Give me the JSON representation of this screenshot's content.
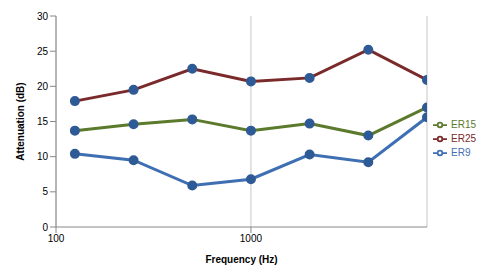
{
  "chart_data": {
    "type": "line",
    "x_label": "Frequency (Hz)",
    "y_label": "Attenuation (dB)",
    "x": [
      125,
      250,
      500,
      1000,
      2000,
      4000,
      8000
    ],
    "series": [
      {
        "name": "ER9",
        "color": "#3f6fb3",
        "values": [
          10.4,
          9.5,
          5.9,
          6.8,
          10.3,
          9.2,
          15.6
        ]
      },
      {
        "name": "ER15",
        "color": "#5c7a2c",
        "values": [
          13.7,
          14.6,
          15.3,
          13.7,
          14.7,
          13.0,
          17.0
        ]
      },
      {
        "name": "ER25",
        "color": "#7a2a2a",
        "values": [
          17.9,
          19.5,
          22.5,
          20.7,
          21.2,
          25.2,
          20.9
        ]
      }
    ],
    "xlim": [
      100,
      8000
    ],
    "xticks": [
      100,
      1000
    ],
    "ylim": [
      0,
      30
    ],
    "yticks": [
      0,
      5,
      10,
      15,
      20,
      25,
      30
    ],
    "log": "x",
    "grid": true,
    "legend": "right",
    "marker": "circle"
  }
}
